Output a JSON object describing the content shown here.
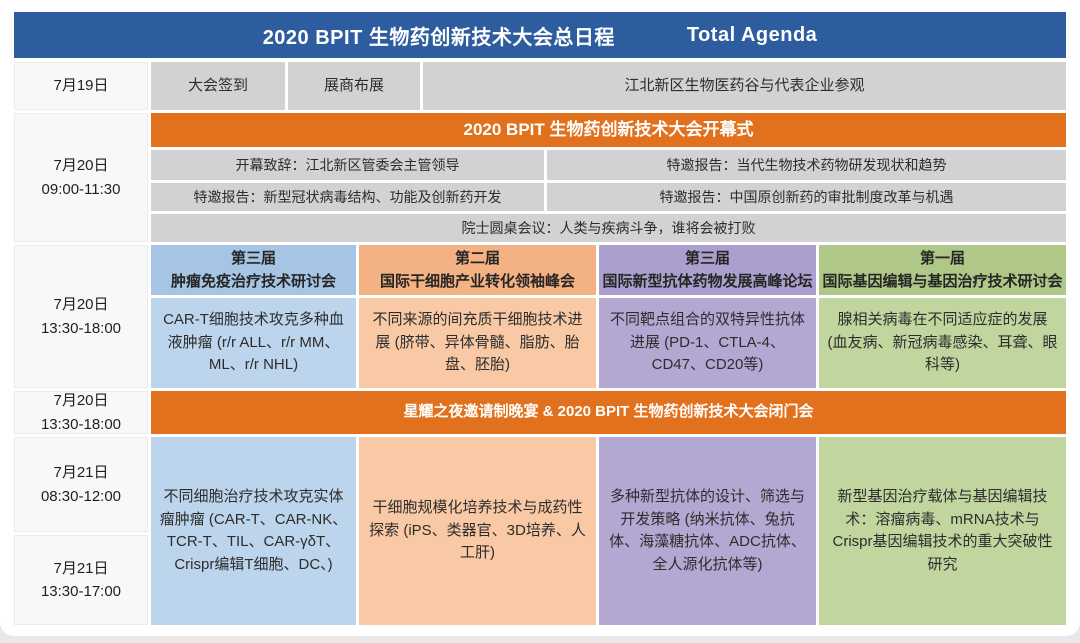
{
  "colors": {
    "title_bar_blue": "#2d5d9f",
    "banner_orange": "#e2711d",
    "cell_gray": "#d2d2d2",
    "track_blue_header": "#a6c4e4",
    "track_blue_body": "#bcd4ec",
    "track_orange_header": "#f4b183",
    "track_orange_body": "#f8c9a4",
    "track_purple_header": "#aba0cd",
    "track_purple_body": "#b2a8d2",
    "track_green_header": "#afc887",
    "track_green_body": "#c0d69e"
  },
  "header": {
    "title_zh": "2020 BPIT 生物药创新技术大会总日程",
    "title_en": "Total Agenda"
  },
  "day1": {
    "date": "7月19日",
    "cells": [
      "大会签到",
      "展商布展",
      "江北新区生物医药谷与代表企业参观"
    ]
  },
  "opening": {
    "date": "7月20日",
    "time": "09:00-11:30",
    "banner": "2020 BPIT 生物药创新技术大会开幕式",
    "row1_left": "开幕致辞：江北新区管委会主管领导",
    "row1_right": "特邀报告：当代生物技术药物研发现状和趋势",
    "row2_left": "特邀报告：新型冠状病毒结构、功能及创新药开发",
    "row2_right": "特邀报告：中国原创新药的审批制度改革与机遇",
    "roundtable": "院士圆桌会议：人类与疾病斗争，谁将会被打败"
  },
  "afternoon": {
    "date": "7月20日",
    "time": "13:30-18:00"
  },
  "tracks": [
    {
      "session": "第三届",
      "title": "肿瘤免疫治疗技术研讨会",
      "pm_topic": "CAR-T细胞技术攻克多种血液肿瘤 (r/r ALL、r/r MM、ML、r/r NHL)",
      "day2_topic": "不同细胞治疗技术攻克实体瘤肿瘤 (CAR-T、CAR-NK、TCR-T、TIL、CAR-γδT、Crispr编辑T细胞、DC、)"
    },
    {
      "session": "第二届",
      "title": "国际干细胞产业转化领袖峰会",
      "pm_topic": "不同来源的间充质干细胞技术进展 (脐带、异体骨髓、脂肪、胎盘、胚胎)",
      "day2_topic": "干细胞规模化培养技术与成药性探索 (iPS、类器官、3D培养、人工肝)"
    },
    {
      "session": "第三届",
      "title": "国际新型抗体药物发展高峰论坛",
      "pm_topic": "不同靶点组合的双特异性抗体进展 (PD-1、CTLA-4、CD47、CD20等)",
      "day2_topic": "多种新型抗体的设计、筛选与开发策略 (纳米抗体、兔抗体、海藻糖抗体、ADC抗体、全人源化抗体等)"
    },
    {
      "session": "第一届",
      "title": "国际基因编辑与基因治疗技术研讨会",
      "pm_topic": "腺相关病毒在不同适应症的发展 (血友病、新冠病毒感染、耳聋、眼科等)",
      "day2_topic": "新型基因治疗载体与基因编辑技术：溶瘤病毒、mRNA技术与Crispr基因编辑技术的重大突破性研究"
    }
  ],
  "banquet": {
    "date": "7月20日",
    "time": "13:30-18:00",
    "text": "星耀之夜邀请制晚宴 & 2020 BPIT 生物药创新技术大会闭门会"
  },
  "day2": {
    "slots": [
      {
        "date": "7月21日",
        "time": "08:30-12:00"
      },
      {
        "date": "7月21日",
        "time": "13:30-17:00"
      }
    ]
  }
}
